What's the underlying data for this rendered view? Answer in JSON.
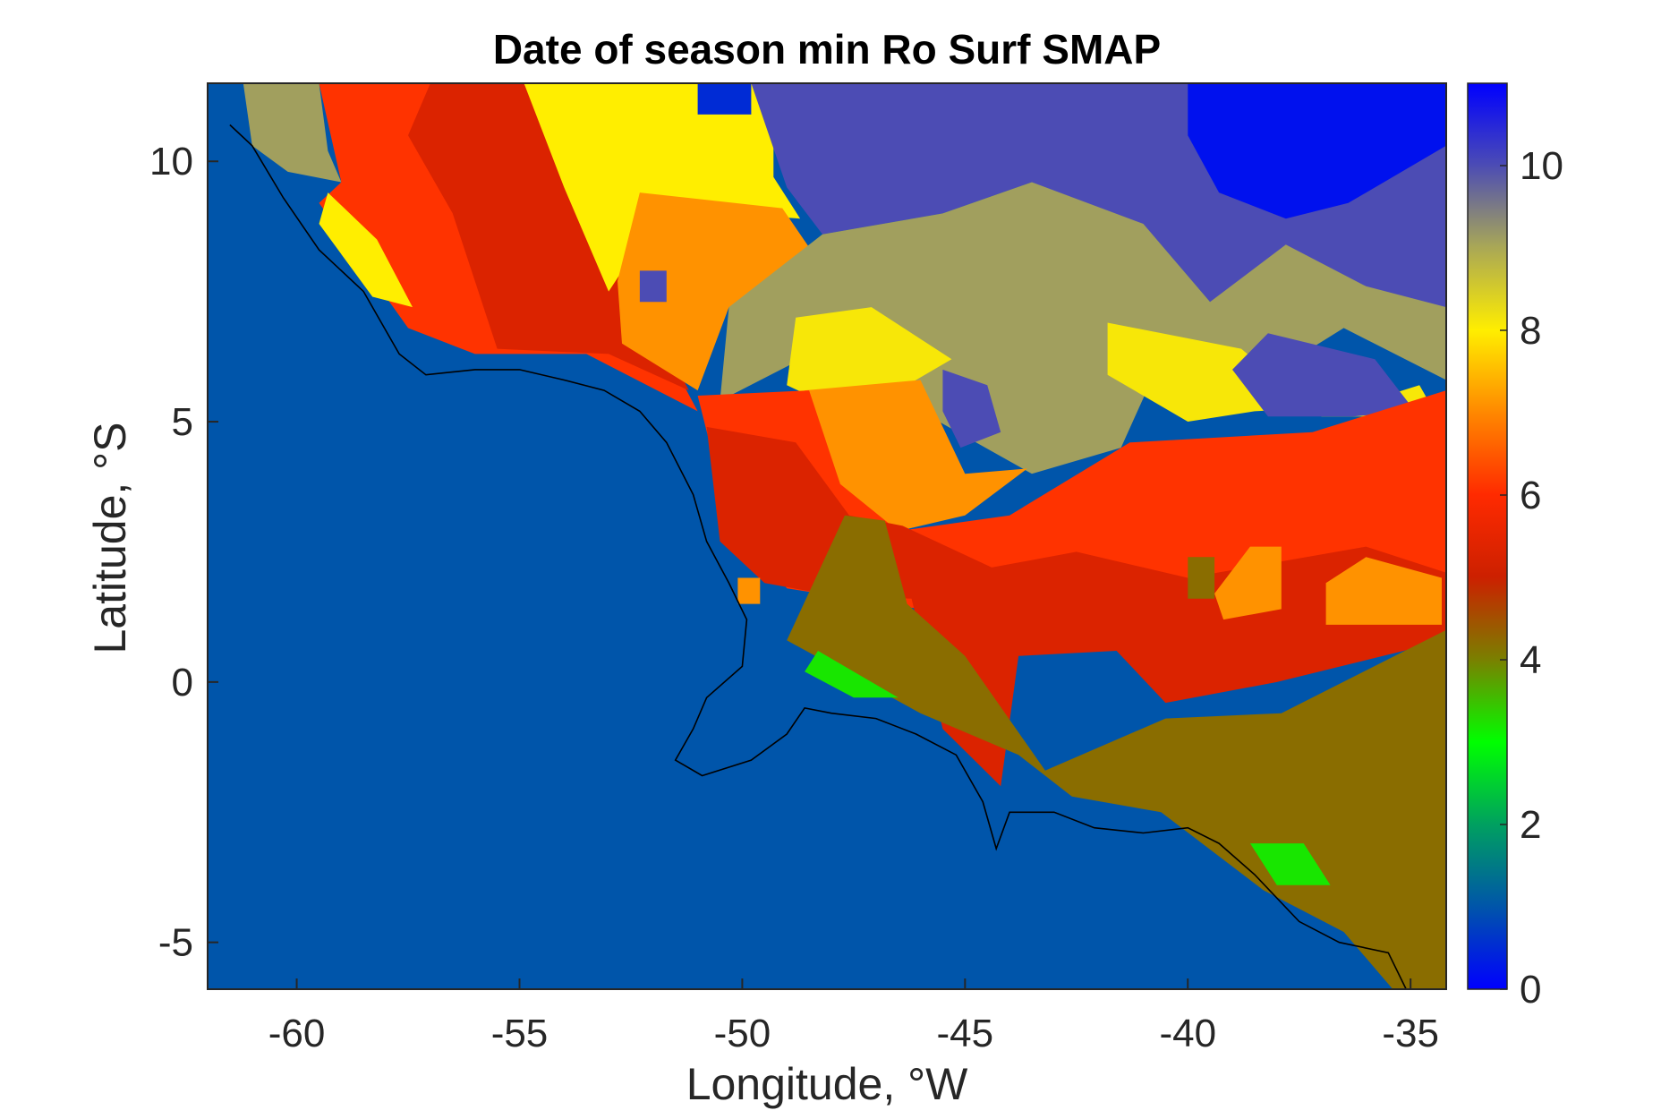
{
  "chart_data": {
    "type": "heatmap",
    "title": "Date of season min Ro Surf SMAP",
    "xlabel": "Longitude, °W",
    "ylabel": "Latitude, °S",
    "xlim": [
      -62,
      -34.2
    ],
    "ylim": [
      -5.9,
      11.5
    ],
    "xticks": [
      -60,
      -55,
      -50,
      -45,
      -40,
      -35
    ],
    "xtick_labels": [
      "-60",
      "-55",
      "-50",
      "-45",
      "-40",
      "-35"
    ],
    "yticks": [
      -5,
      0,
      5,
      10
    ],
    "ytick_labels": [
      "-5",
      "0",
      "5",
      "10"
    ],
    "colorbar": {
      "range": [
        0,
        11
      ],
      "ticks": [
        0,
        2,
        4,
        6,
        8,
        10
      ],
      "tick_labels": [
        "0",
        "2",
        "4",
        "6",
        "8",
        "10"
      ],
      "stops": [
        {
          "v": 0,
          "color": "#0000ff"
        },
        {
          "v": 1,
          "color": "#0055aa"
        },
        {
          "v": 2,
          "color": "#00a060"
        },
        {
          "v": 3,
          "color": "#00ff00"
        },
        {
          "v": 4,
          "color": "#7a8000"
        },
        {
          "v": 5,
          "color": "#cc2000"
        },
        {
          "v": 6,
          "color": "#ff2a00"
        },
        {
          "v": 7,
          "color": "#ff8800"
        },
        {
          "v": 8,
          "color": "#ffee00"
        },
        {
          "v": 9,
          "color": "#aaa855"
        },
        {
          "v": 10,
          "color": "#4c4cb4"
        },
        {
          "v": 11,
          "color": "#0000ff"
        }
      ]
    },
    "regions": [
      {
        "value": 9.1,
        "lonlat": [
          [
            -61.2,
            11.5
          ],
          [
            -59.5,
            11.5
          ],
          [
            -59.3,
            10.2
          ],
          [
            -59.0,
            9.6
          ],
          [
            -60.2,
            9.8
          ],
          [
            -61.0,
            10.3
          ]
        ]
      },
      {
        "value": 6.1,
        "lonlat": [
          [
            -59.5,
            11.5
          ],
          [
            -54.5,
            11.5
          ],
          [
            -52.5,
            8.5
          ],
          [
            -51.5,
            6.0
          ],
          [
            -51.0,
            5.2
          ],
          [
            -53.5,
            6.3
          ],
          [
            -56.0,
            6.3
          ],
          [
            -57.5,
            6.8
          ],
          [
            -59.5,
            9.2
          ],
          [
            -59.0,
            9.6
          ]
        ]
      },
      {
        "value": 5.3,
        "lonlat": [
          [
            -57.0,
            11.5
          ],
          [
            -54.5,
            11.5
          ],
          [
            -53.5,
            9.5
          ],
          [
            -51.2,
            5.6
          ],
          [
            -53.0,
            6.3
          ],
          [
            -55.5,
            6.4
          ],
          [
            -56.5,
            9.0
          ],
          [
            -57.5,
            10.5
          ]
        ]
      },
      {
        "value": 8.0,
        "lonlat": [
          [
            -59.3,
            9.4
          ],
          [
            -58.2,
            8.5
          ],
          [
            -57.4,
            7.2
          ],
          [
            -58.3,
            7.4
          ],
          [
            -59.5,
            8.8
          ]
        ]
      },
      {
        "value": 8.0,
        "lonlat": [
          [
            -54.9,
            11.5
          ],
          [
            -49.3,
            11.5
          ],
          [
            -49.3,
            9.7
          ],
          [
            -48.7,
            8.9
          ],
          [
            -50.5,
            9.0
          ],
          [
            -52.0,
            8.8
          ],
          [
            -53.0,
            7.5
          ],
          [
            -54.0,
            9.5
          ]
        ]
      },
      {
        "value": 7.1,
        "lonlat": [
          [
            -52.3,
            9.4
          ],
          [
            -49.1,
            9.1
          ],
          [
            -48.3,
            8.1
          ],
          [
            -50.3,
            7.2
          ],
          [
            -51.0,
            5.6
          ],
          [
            -52.7,
            6.5
          ],
          [
            -52.8,
            7.7
          ]
        ]
      },
      {
        "value": 10.0,
        "lonlat": [
          [
            -52.3,
            7.9
          ],
          [
            -51.7,
            7.9
          ],
          [
            -51.7,
            7.3
          ],
          [
            -52.3,
            7.3
          ]
        ]
      },
      {
        "value": 0.5,
        "lonlat": [
          [
            -51.0,
            11.5
          ],
          [
            -49.8,
            11.5
          ],
          [
            -49.8,
            10.9
          ],
          [
            -51.0,
            10.9
          ]
        ]
      },
      {
        "value": 10.0,
        "lonlat": [
          [
            -49.8,
            11.5
          ],
          [
            -40.0,
            11.5
          ],
          [
            -39.5,
            10.3
          ],
          [
            -38.8,
            9.5
          ],
          [
            -37.0,
            9.2
          ],
          [
            -36.1,
            10.0
          ],
          [
            -34.2,
            11.5
          ],
          [
            -34.2,
            7.2
          ],
          [
            -37.0,
            7.5
          ],
          [
            -39.5,
            7.3
          ],
          [
            -40.8,
            8.6
          ],
          [
            -43.5,
            9.6
          ],
          [
            -45.5,
            9.0
          ],
          [
            -48.2,
            8.6
          ],
          [
            -49.0,
            9.5
          ]
        ]
      },
      {
        "value": 0.2,
        "lonlat": [
          [
            -40.0,
            11.5
          ],
          [
            -34.2,
            11.5
          ],
          [
            -34.2,
            10.3
          ],
          [
            -36.4,
            9.2
          ],
          [
            -37.8,
            8.9
          ],
          [
            -39.3,
            9.4
          ],
          [
            -40.0,
            10.5
          ]
        ]
      },
      {
        "value": 9.1,
        "lonlat": [
          [
            -50.3,
            7.2
          ],
          [
            -48.2,
            8.6
          ],
          [
            -45.5,
            9.0
          ],
          [
            -43.5,
            9.6
          ],
          [
            -41.0,
            8.8
          ],
          [
            -39.5,
            7.3
          ],
          [
            -37.8,
            8.4
          ],
          [
            -36.0,
            7.6
          ],
          [
            -34.2,
            7.2
          ],
          [
            -34.2,
            5.8
          ],
          [
            -36.5,
            6.8
          ],
          [
            -38.0,
            6.0
          ],
          [
            -40.5,
            6.4
          ],
          [
            -41.5,
            4.5
          ],
          [
            -43.5,
            4.0
          ],
          [
            -46.0,
            5.2
          ],
          [
            -48.0,
            6.5
          ],
          [
            -50.5,
            5.4
          ]
        ]
      },
      {
        "value": 8.1,
        "lonlat": [
          [
            -48.8,
            7.0
          ],
          [
            -47.1,
            7.2
          ],
          [
            -45.3,
            6.2
          ],
          [
            -46.5,
            5.6
          ],
          [
            -48.5,
            5.5
          ],
          [
            -49.0,
            5.7
          ]
        ]
      },
      {
        "value": 8.1,
        "lonlat": [
          [
            -41.8,
            6.9
          ],
          [
            -38.8,
            6.4
          ],
          [
            -37.0,
            5.1
          ],
          [
            -34.4,
            5.1
          ],
          [
            -34.8,
            5.7
          ],
          [
            -36.3,
            5.3
          ],
          [
            -38.5,
            5.2
          ],
          [
            -40.0,
            5.0
          ],
          [
            -41.8,
            5.9
          ]
        ]
      },
      {
        "value": 10.0,
        "lonlat": [
          [
            -45.5,
            6.0
          ],
          [
            -44.5,
            5.7
          ],
          [
            -44.2,
            4.8
          ],
          [
            -45.1,
            4.5
          ],
          [
            -45.5,
            5.2
          ]
        ]
      },
      {
        "value": 10.0,
        "lonlat": [
          [
            -38.2,
            6.7
          ],
          [
            -35.8,
            6.2
          ],
          [
            -34.9,
            5.2
          ],
          [
            -36.3,
            5.1
          ],
          [
            -38.2,
            5.1
          ],
          [
            -39.0,
            6.0
          ]
        ]
      },
      {
        "value": 7.1,
        "lonlat": [
          [
            -48.6,
            5.6
          ],
          [
            -46.0,
            5.8
          ],
          [
            -45.0,
            4.0
          ],
          [
            -43.6,
            4.1
          ],
          [
            -45.0,
            3.2
          ],
          [
            -46.5,
            2.9
          ],
          [
            -48.0,
            3.8
          ]
        ]
      },
      {
        "value": 6.1,
        "lonlat": [
          [
            -51.0,
            5.5
          ],
          [
            -48.5,
            5.6
          ],
          [
            -47.8,
            3.8
          ],
          [
            -46.5,
            2.9
          ],
          [
            -44.0,
            3.2
          ],
          [
            -41.3,
            4.6
          ],
          [
            -37.2,
            4.8
          ],
          [
            -34.2,
            5.6
          ],
          [
            -34.2,
            1.0
          ],
          [
            -36.0,
            1.1
          ],
          [
            -39.2,
            0.6
          ],
          [
            -41.8,
            1.0
          ],
          [
            -44.0,
            0.5
          ],
          [
            -46.0,
            1.4
          ],
          [
            -49.0,
            1.8
          ],
          [
            -50.5,
            3.8
          ]
        ]
      },
      {
        "value": 5.3,
        "lonlat": [
          [
            -50.8,
            4.9
          ],
          [
            -48.8,
            4.6
          ],
          [
            -47.6,
            3.2
          ],
          [
            -46.4,
            3.0
          ],
          [
            -44.4,
            2.2
          ],
          [
            -42.5,
            2.5
          ],
          [
            -40.0,
            2.0
          ],
          [
            -36.0,
            2.6
          ],
          [
            -34.2,
            2.1
          ],
          [
            -34.2,
            0.8
          ],
          [
            -38.0,
            0.0
          ],
          [
            -40.5,
            -0.4
          ],
          [
            -41.6,
            0.6
          ],
          [
            -43.8,
            0.5
          ],
          [
            -44.2,
            -2.0
          ],
          [
            -45.5,
            -0.9
          ],
          [
            -46.2,
            1.6
          ],
          [
            -48.2,
            1.7
          ],
          [
            -49.5,
            1.9
          ],
          [
            -50.5,
            2.7
          ]
        ]
      },
      {
        "value": 7.1,
        "lonlat": [
          [
            -38.6,
            2.6
          ],
          [
            -37.9,
            2.6
          ],
          [
            -37.9,
            1.4
          ],
          [
            -39.2,
            1.2
          ],
          [
            -39.4,
            1.7
          ]
        ]
      },
      {
        "value": 7.1,
        "lonlat": [
          [
            -36.0,
            2.4
          ],
          [
            -34.3,
            2.0
          ],
          [
            -34.3,
            1.1
          ],
          [
            -36.9,
            1.1
          ],
          [
            -36.9,
            1.9
          ]
        ]
      },
      {
        "value": 4.2,
        "lonlat": [
          [
            -47.7,
            3.2
          ],
          [
            -46.8,
            3.1
          ],
          [
            -46.3,
            1.5
          ],
          [
            -45.0,
            0.5
          ],
          [
            -43.2,
            -1.7
          ],
          [
            -40.5,
            -0.7
          ],
          [
            -37.9,
            -0.6
          ],
          [
            -34.2,
            1.0
          ],
          [
            -34.2,
            -5.9
          ],
          [
            -35.4,
            -5.9
          ],
          [
            -36.5,
            -4.8
          ],
          [
            -38.3,
            -4.0
          ],
          [
            -40.6,
            -2.5
          ],
          [
            -42.6,
            -2.2
          ],
          [
            -43.8,
            -1.4
          ],
          [
            -46.0,
            -0.6
          ],
          [
            -49.0,
            0.8
          ]
        ]
      },
      {
        "value": 4.2,
        "lonlat": [
          [
            -40.0,
            2.4
          ],
          [
            -39.4,
            2.4
          ],
          [
            -39.4,
            1.6
          ],
          [
            -40.0,
            1.6
          ]
        ]
      },
      {
        "value": 3.2,
        "lonlat": [
          [
            -48.3,
            0.6
          ],
          [
            -46.5,
            -0.3
          ],
          [
            -47.5,
            -0.3
          ],
          [
            -48.6,
            0.2
          ]
        ]
      },
      {
        "value": 3.2,
        "lonlat": [
          [
            -37.4,
            -3.1
          ],
          [
            -36.8,
            -3.9
          ],
          [
            -38.0,
            -3.9
          ],
          [
            -38.6,
            -3.1
          ]
        ]
      },
      {
        "value": 7.1,
        "lonlat": [
          [
            -50.1,
            2.0
          ],
          [
            -49.6,
            2.0
          ],
          [
            -49.6,
            1.5
          ],
          [
            -50.1,
            1.5
          ]
        ]
      }
    ],
    "coastline": [
      [
        -61.5,
        10.7
      ],
      [
        -61.0,
        10.3
      ],
      [
        -60.3,
        9.3
      ],
      [
        -59.5,
        8.3
      ],
      [
        -58.5,
        7.5
      ],
      [
        -57.7,
        6.3
      ],
      [
        -57.1,
        5.9
      ],
      [
        -56.0,
        6.0
      ],
      [
        -55.0,
        6.0
      ],
      [
        -54.0,
        5.8
      ],
      [
        -53.1,
        5.6
      ],
      [
        -52.3,
        5.2
      ],
      [
        -51.7,
        4.6
      ],
      [
        -51.1,
        3.6
      ],
      [
        -50.8,
        2.7
      ],
      [
        -50.3,
        1.9
      ],
      [
        -49.9,
        1.2
      ],
      [
        -50.0,
        0.3
      ],
      [
        -50.8,
        -0.3
      ],
      [
        -51.1,
        -0.9
      ],
      [
        -51.5,
        -1.5
      ],
      [
        -50.9,
        -1.8
      ],
      [
        -49.8,
        -1.5
      ],
      [
        -49.0,
        -1.0
      ],
      [
        -48.6,
        -0.5
      ],
      [
        -48.0,
        -0.6
      ],
      [
        -47.0,
        -0.7
      ],
      [
        -46.1,
        -1.0
      ],
      [
        -45.2,
        -1.4
      ],
      [
        -44.6,
        -2.3
      ],
      [
        -44.3,
        -3.2
      ],
      [
        -44.0,
        -2.5
      ],
      [
        -43.0,
        -2.5
      ],
      [
        -42.1,
        -2.8
      ],
      [
        -41.0,
        -2.9
      ],
      [
        -40.0,
        -2.8
      ],
      [
        -39.3,
        -3.1
      ],
      [
        -38.5,
        -3.7
      ],
      [
        -37.5,
        -4.6
      ],
      [
        -36.6,
        -5.0
      ],
      [
        -35.5,
        -5.2
      ],
      [
        -35.1,
        -5.9
      ]
    ]
  }
}
